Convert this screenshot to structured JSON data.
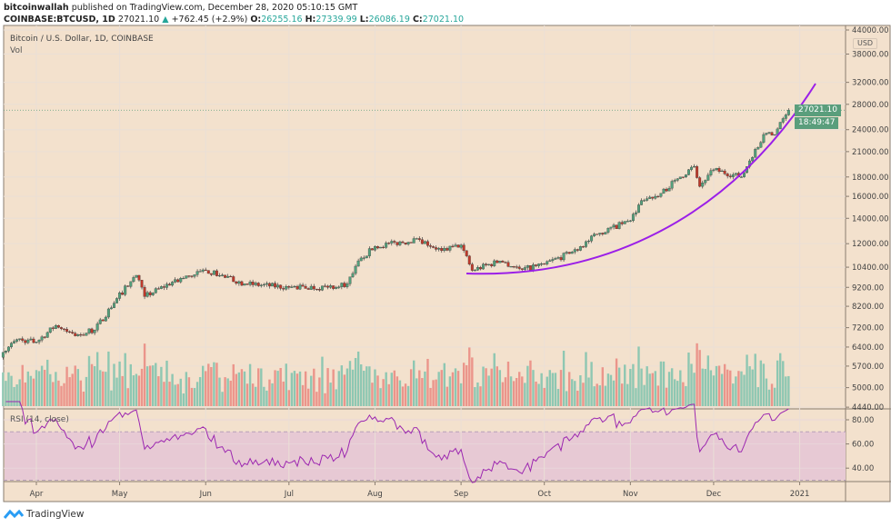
{
  "header": {
    "author": "bitcoinwallah",
    "published": "published on TradingView.com, December 28, 2020 05:10:15 GMT",
    "symbol": "COINBASE:BTCUSD, 1D",
    "last": "27021.10",
    "change": "+762.45 (+2.9%)",
    "o_label": "O:",
    "o": "26255.16",
    "h_label": "H:",
    "h": "27339.99",
    "l_label": "L:",
    "l": "26086.19",
    "c_label": "C:",
    "c": "27021.10"
  },
  "pane": {
    "title": "Bitcoin / U.S. Dollar, 1D, COINBASE",
    "vol_label": "Vol",
    "rsi_label": "RSI (14, close)",
    "currency": "USD",
    "last_price_tag": "27021.10",
    "countdown_tag": "18:49:47"
  },
  "footer": {
    "brand": "TradingView"
  },
  "colors": {
    "background": "#f3e1cd",
    "up": "#53a07c",
    "down": "#c0392b",
    "vol_up": "#8ec7b2",
    "vol_down": "#eb958b",
    "rsi_line": "#9c27b0",
    "rsi_band": "#e7c9d4",
    "trend_curve": "#9b1fe8"
  },
  "chart_data": {
    "type": "candlestick",
    "title": "Bitcoin / U.S. Dollar, 1D, COINBASE",
    "y_scale": "log",
    "ylim": [
      4440,
      44000
    ],
    "price_ticks": [
      "44000.00",
      "38000.00",
      "32000.00",
      "28000.00",
      "24000.00",
      "21000.00",
      "18000.00",
      "16000.00",
      "14000.00",
      "12000.00",
      "10400.00",
      "9200.00",
      "8200.00",
      "7200.00",
      "6400.00",
      "5700.00",
      "5000.00",
      "4440.00"
    ],
    "rsi_ticks": [
      "80.00",
      "60.00",
      "40.00"
    ],
    "rsi_band": [
      30,
      70
    ],
    "x_ticks": [
      "Apr",
      "May",
      "Jun",
      "Jul",
      "Aug",
      "Sep",
      "Oct",
      "Nov",
      "Dec",
      "2021"
    ],
    "approx_closes": [
      [
        "2020-03-20",
        6200
      ],
      [
        "2020-03-25",
        6700
      ],
      [
        "2020-04-01",
        6600
      ],
      [
        "2020-04-08",
        7300
      ],
      [
        "2020-04-15",
        6850
      ],
      [
        "2020-04-22",
        7100
      ],
      [
        "2020-04-30",
        8600
      ],
      [
        "2020-05-07",
        9900
      ],
      [
        "2020-05-10",
        8700
      ],
      [
        "2020-05-20",
        9500
      ],
      [
        "2020-06-01",
        10200
      ],
      [
        "2020-06-15",
        9400
      ],
      [
        "2020-07-01",
        9200
      ],
      [
        "2020-07-15",
        9200
      ],
      [
        "2020-07-22",
        9400
      ],
      [
        "2020-07-27",
        11000
      ],
      [
        "2020-08-01",
        11800
      ],
      [
        "2020-08-17",
        12300
      ],
      [
        "2020-08-25",
        11500
      ],
      [
        "2020-09-01",
        11900
      ],
      [
        "2020-09-05",
        10200
      ],
      [
        "2020-09-15",
        10800
      ],
      [
        "2020-09-23",
        10250
      ],
      [
        "2020-10-01",
        10600
      ],
      [
        "2020-10-10",
        11300
      ],
      [
        "2020-10-21",
        12800
      ],
      [
        "2020-11-01",
        13800
      ],
      [
        "2020-11-05",
        15600
      ],
      [
        "2020-11-12",
        16300
      ],
      [
        "2020-11-18",
        17800
      ],
      [
        "2020-11-24",
        19200
      ],
      [
        "2020-11-26",
        17000
      ],
      [
        "2020-12-01",
        18800
      ],
      [
        "2020-12-11",
        18000
      ],
      [
        "2020-12-16",
        21300
      ],
      [
        "2020-12-20",
        23500
      ],
      [
        "2020-12-23",
        23300
      ],
      [
        "2020-12-27",
        26255.16
      ],
      [
        "2020-12-28",
        27021.1
      ]
    ],
    "last_candle": {
      "date": "2020-12-28",
      "open": 26255.16,
      "high": 27339.99,
      "low": 26086.19,
      "close": 27021.1
    },
    "annotations": [
      "parabolic support curve"
    ]
  }
}
